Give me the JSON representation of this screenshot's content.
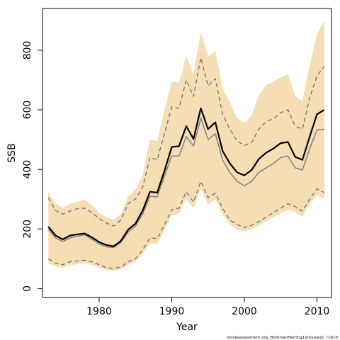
{
  "chart_data": {
    "type": "area",
    "xlabel": "Year",
    "ylabel": "SSB",
    "xlim": [
      1972.2,
      2012.0
    ],
    "ylim": [
      -30,
      940
    ],
    "x_ticks": [
      1980,
      1990,
      2000,
      2010
    ],
    "y_ticks": [
      0,
      200,
      400,
      600,
      800
    ],
    "grid": false,
    "legend": "none",
    "credit": "stockassessment.org, BothnianHerring12revised2, r1610",
    "colors": {
      "band": "#f5deb3",
      "main_line": "#000000",
      "secondary_line": "#7f7f7f",
      "dashed_line": "#707070",
      "frame": "#000000"
    },
    "x": [
      1973,
      1974,
      1975,
      1976,
      1977,
      1978,
      1979,
      1980,
      1981,
      1982,
      1983,
      1984,
      1985,
      1986,
      1987,
      1988,
      1989,
      1990,
      1991,
      1992,
      1993,
      1994,
      1995,
      1996,
      1997,
      1998,
      1999,
      2000,
      2001,
      2002,
      2003,
      2004,
      2005,
      2006,
      2007,
      2008,
      2009,
      2010,
      2011
    ],
    "series": [
      {
        "values": [
          208,
          178,
          165,
          178,
          182,
          185,
          172,
          156,
          146,
          142,
          160,
          198,
          218,
          262,
          325,
          322,
          395,
          475,
          478,
          545,
          502,
          605,
          535,
          558,
          462,
          420,
          390,
          380,
          398,
          435,
          456,
          470,
          488,
          492,
          442,
          432,
          510,
          585,
          600
        ]
      },
      {
        "values": [
          200,
          170,
          158,
          170,
          176,
          180,
          165,
          150,
          140,
          138,
          155,
          190,
          210,
          250,
          310,
          308,
          378,
          445,
          445,
          510,
          478,
          572,
          500,
          520,
          432,
          390,
          360,
          345,
          360,
          390,
          405,
          420,
          440,
          445,
          405,
          398,
          470,
          532,
          535
        ]
      },
      {
        "values": [
          100,
          85,
          80,
          90,
          93,
          95,
          90,
          80,
          70,
          68,
          72,
          90,
          100,
          130,
          170,
          168,
          215,
          265,
          270,
          325,
          290,
          360,
          305,
          320,
          270,
          230,
          215,
          205,
          212,
          225,
          240,
          255,
          270,
          285,
          275,
          260,
          300,
          335,
          322
        ]
      },
      {
        "values": [
          305,
          262,
          250,
          260,
          268,
          270,
          255,
          235,
          220,
          210,
          230,
          285,
          300,
          340,
          440,
          432,
          520,
          610,
          605,
          700,
          645,
          775,
          680,
          705,
          585,
          535,
          495,
          480,
          490,
          535,
          560,
          570,
          590,
          600,
          545,
          535,
          640,
          715,
          745
        ]
      },
      {
        "lower": [
          85,
          75,
          70,
          78,
          82,
          85,
          80,
          70,
          63,
          60,
          65,
          80,
          90,
          115,
          152,
          150,
          195,
          245,
          252,
          300,
          270,
          335,
          282,
          300,
          248,
          215,
          200,
          192,
          200,
          212,
          226,
          240,
          252,
          266,
          256,
          242,
          282,
          315,
          300
        ],
        "upper": [
          325,
          285,
          270,
          285,
          292,
          298,
          280,
          255,
          240,
          230,
          250,
          310,
          332,
          382,
          500,
          495,
          600,
          695,
          690,
          782,
          720,
          862,
          778,
          800,
          672,
          625,
          572,
          555,
          580,
          650,
          682,
          695,
          708,
          720,
          645,
          630,
          750,
          855,
          900
        ]
      }
    ]
  }
}
